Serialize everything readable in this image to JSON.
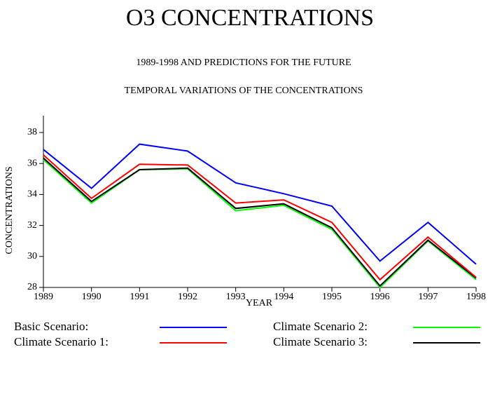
{
  "chart_data": {
    "type": "line",
    "title": "O3   CONCENTRATIONS",
    "subtitle": "1989-1998 AND PREDICTIONS FOR THE FUTURE",
    "subtitle2": "TEMPORAL VARIATIONS OF THE CONCENTRATIONS",
    "x_label": "YEAR",
    "y_label": "CONCENTRATIONS",
    "x": [
      1989,
      1990,
      1991,
      1992,
      1993,
      1994,
      1995,
      1996,
      1997,
      1998
    ],
    "xlim": [
      1989,
      1998
    ],
    "xticks": [
      1989,
      1990,
      1991,
      1992,
      1993,
      1994,
      1995,
      1996,
      1997,
      1998
    ],
    "ylim": [
      28,
      39
    ],
    "yticks": [
      28,
      30,
      32,
      34,
      36,
      38
    ],
    "series": [
      {
        "name": "Basic Scenario:",
        "color": "#0000ff",
        "values": [
          36.9,
          34.4,
          37.25,
          36.8,
          34.75,
          34.05,
          33.25,
          29.7,
          32.2,
          29.5
        ]
      },
      {
        "name": "Climate Scenario 1:",
        "color": "#ff0000",
        "values": [
          36.55,
          33.75,
          35.95,
          35.9,
          33.45,
          33.65,
          32.2,
          28.5,
          31.25,
          28.65
        ]
      },
      {
        "name": "Climate Scenario 2:",
        "color": "#00ff00",
        "values": [
          36.25,
          33.45,
          35.6,
          35.65,
          32.95,
          33.3,
          31.75,
          28.0,
          31.0,
          28.5
        ]
      },
      {
        "name": "Climate Scenario 3:",
        "color": "#000000",
        "values": [
          36.35,
          33.55,
          35.6,
          35.7,
          33.1,
          33.4,
          31.85,
          28.1,
          31.05,
          28.6
        ]
      }
    ]
  }
}
